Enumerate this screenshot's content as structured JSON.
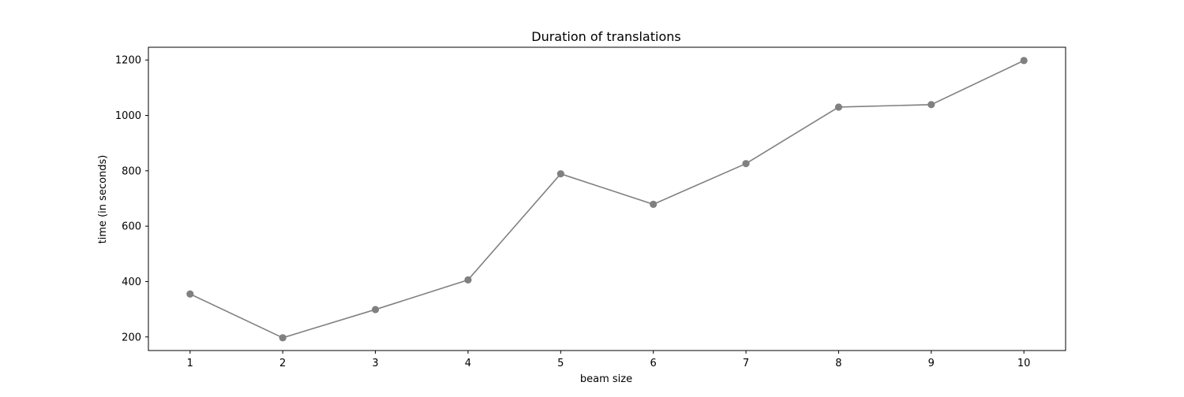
{
  "chart_data": {
    "type": "line",
    "title": "Duration of translations",
    "xlabel": "beam size",
    "ylabel": "time (in seconds)",
    "x": [
      1,
      2,
      3,
      4,
      5,
      6,
      7,
      8,
      9,
      10
    ],
    "series": [
      {
        "values": [
          355,
          197,
          299,
          406,
          789,
          679,
          826,
          1030,
          1039,
          1198
        ],
        "color": "#808080",
        "marker": "circle"
      }
    ],
    "xticks": [
      "1",
      "2",
      "3",
      "4",
      "5",
      "6",
      "7",
      "8",
      "9",
      "10"
    ],
    "yticks": [
      "200",
      "400",
      "600",
      "800",
      "1000",
      "1200"
    ],
    "xlim": [
      0.55,
      10.45
    ],
    "ylim": [
      150.95,
      1246.05
    ],
    "grid": false,
    "legend": "none"
  }
}
